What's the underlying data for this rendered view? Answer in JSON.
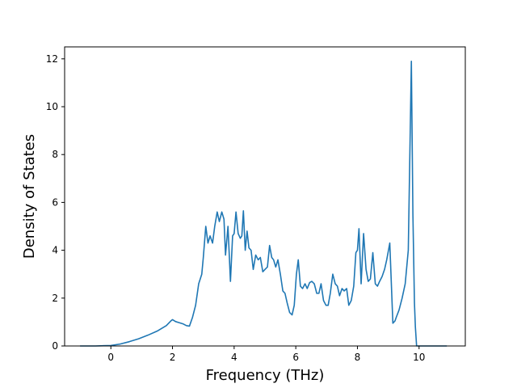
{
  "chart_data": {
    "type": "line",
    "title": "",
    "xlabel": "Frequency (THz)",
    "ylabel": "Density of States",
    "xlim": [
      -1.5,
      11.5
    ],
    "ylim": [
      0,
      12.5
    ],
    "xticks": [
      0,
      2,
      4,
      6,
      8,
      10
    ],
    "yticks": [
      0,
      2,
      4,
      6,
      8,
      10,
      12
    ],
    "grid": false,
    "line_color": "#1f77b4",
    "series": [
      {
        "x": [
          -1.0,
          -0.5,
          0.0,
          0.3,
          0.6,
          0.9,
          1.2,
          1.5,
          1.8,
          1.95,
          2.0,
          2.1,
          2.2,
          2.35,
          2.45,
          2.55,
          2.65,
          2.75,
          2.85,
          2.95,
          3.0,
          3.08,
          3.15,
          3.22,
          3.3,
          3.37,
          3.45,
          3.52,
          3.6,
          3.67,
          3.72,
          3.8,
          3.88,
          3.95,
          4.0,
          4.06,
          4.13,
          4.2,
          4.25,
          4.3,
          4.36,
          4.42,
          4.48,
          4.55,
          4.62,
          4.7,
          4.78,
          4.85,
          4.93,
          5.0,
          5.08,
          5.15,
          5.22,
          5.28,
          5.35,
          5.42,
          5.5,
          5.58,
          5.65,
          5.72,
          5.8,
          5.88,
          5.95,
          6.02,
          6.08,
          6.15,
          6.22,
          6.3,
          6.37,
          6.45,
          6.52,
          6.6,
          6.68,
          6.75,
          6.82,
          6.9,
          6.98,
          7.05,
          7.12,
          7.2,
          7.28,
          7.35,
          7.42,
          7.5,
          7.57,
          7.65,
          7.72,
          7.8,
          7.88,
          7.95,
          8.0,
          8.05,
          8.12,
          8.2,
          8.28,
          8.35,
          8.42,
          8.5,
          8.58,
          8.65,
          8.72,
          8.8,
          8.88,
          8.95,
          9.05,
          9.15,
          9.22,
          9.26,
          9.35,
          9.45,
          9.55,
          9.65,
          9.75,
          9.8,
          9.85,
          9.88,
          9.92,
          9.97,
          10.5,
          10.9
        ],
        "y": [
          0.0,
          0.0,
          0.02,
          0.08,
          0.18,
          0.3,
          0.45,
          0.62,
          0.85,
          1.05,
          1.1,
          1.02,
          0.98,
          0.92,
          0.85,
          0.83,
          1.2,
          1.7,
          2.6,
          3.0,
          3.7,
          5.0,
          4.3,
          4.6,
          4.3,
          5.0,
          5.6,
          5.2,
          5.6,
          5.3,
          3.8,
          5.0,
          2.7,
          4.6,
          4.7,
          5.6,
          4.7,
          4.5,
          4.6,
          5.65,
          4.0,
          4.8,
          4.1,
          4.0,
          3.2,
          3.8,
          3.6,
          3.7,
          3.1,
          3.2,
          3.3,
          4.2,
          3.7,
          3.6,
          3.3,
          3.6,
          3.0,
          2.3,
          2.2,
          1.8,
          1.4,
          1.3,
          1.7,
          3.0,
          3.6,
          2.5,
          2.4,
          2.6,
          2.4,
          2.65,
          2.7,
          2.6,
          2.2,
          2.2,
          2.6,
          1.9,
          1.7,
          1.7,
          2.2,
          3.0,
          2.6,
          2.5,
          2.1,
          2.4,
          2.3,
          2.4,
          1.7,
          1.9,
          2.5,
          3.9,
          4.0,
          4.9,
          2.6,
          4.7,
          3.2,
          2.7,
          2.8,
          3.9,
          2.6,
          2.5,
          2.7,
          2.9,
          3.2,
          3.6,
          4.3,
          0.95,
          1.05,
          1.2,
          1.5,
          2.0,
          2.6,
          4.0,
          11.9,
          5.5,
          1.8,
          0.8,
          0.0,
          0.0,
          0.0,
          0.0
        ]
      }
    ]
  }
}
